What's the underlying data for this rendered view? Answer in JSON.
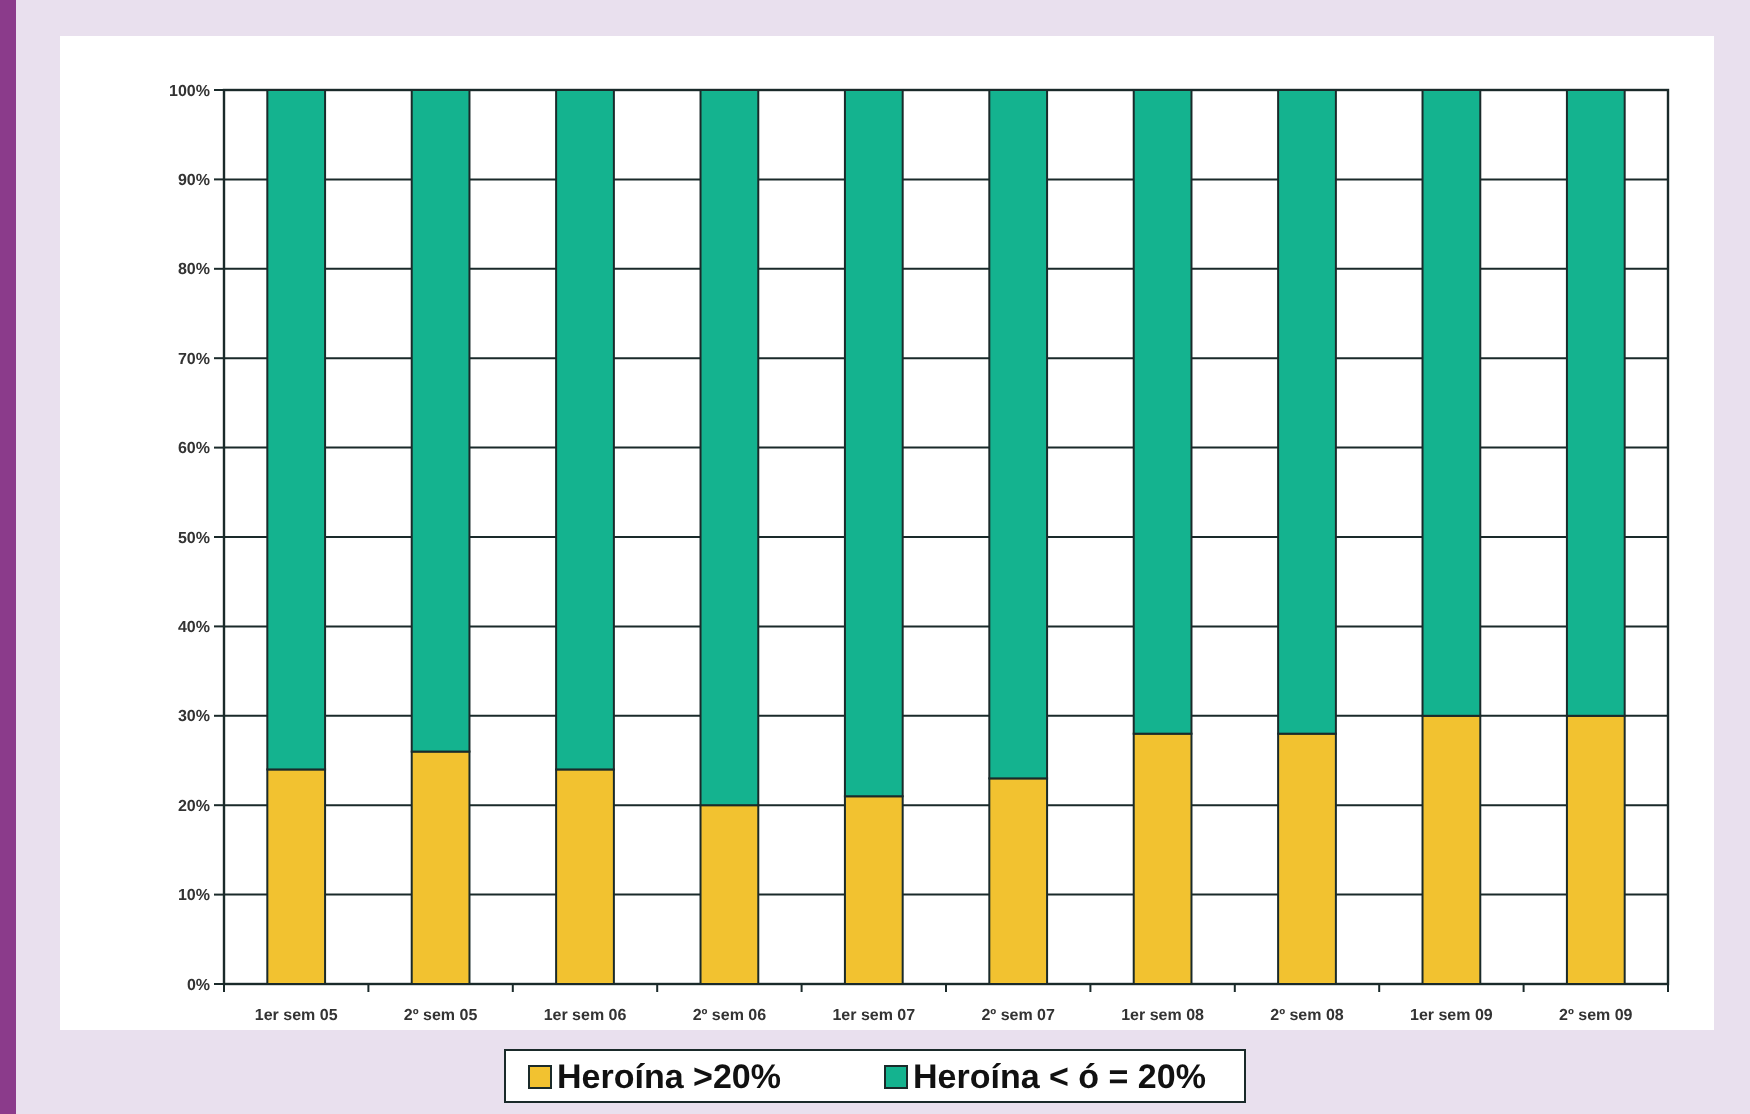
{
  "chart_data": {
    "type": "bar",
    "stacked": true,
    "categories": [
      "1er sem 05",
      "2º sem 05",
      "1er sem 06",
      "2º sem 06",
      "1er sem 07",
      "2º sem 07",
      "1er sem 08",
      "2º sem 08",
      "1er sem 09",
      "2º sem 09"
    ],
    "series": [
      {
        "name": "Heroína >20%",
        "color": "#f2c230",
        "values": [
          24,
          26,
          24,
          20,
          21,
          23,
          28,
          28,
          30,
          30
        ]
      },
      {
        "name": "Heroína < ó = 20%",
        "color": "#14b38f",
        "values": [
          76,
          74,
          76,
          80,
          79,
          77,
          72,
          72,
          70,
          70
        ]
      }
    ],
    "ylim": [
      0,
      100
    ],
    "yticks": [
      {
        "value": 0,
        "label": "0%"
      },
      {
        "value": 10,
        "label": "10%"
      },
      {
        "value": 20,
        "label": "20%"
      },
      {
        "value": 30,
        "label": "30%"
      },
      {
        "value": 40,
        "label": "40%"
      },
      {
        "value": 50,
        "label": "50%"
      },
      {
        "value": 60,
        "label": "60%"
      },
      {
        "value": 70,
        "label": "70%"
      },
      {
        "value": 80,
        "label": "80%"
      },
      {
        "value": 90,
        "label": "90%"
      },
      {
        "value": 100,
        "label": "100%"
      }
    ],
    "grid": "y",
    "legend": "bottom"
  }
}
